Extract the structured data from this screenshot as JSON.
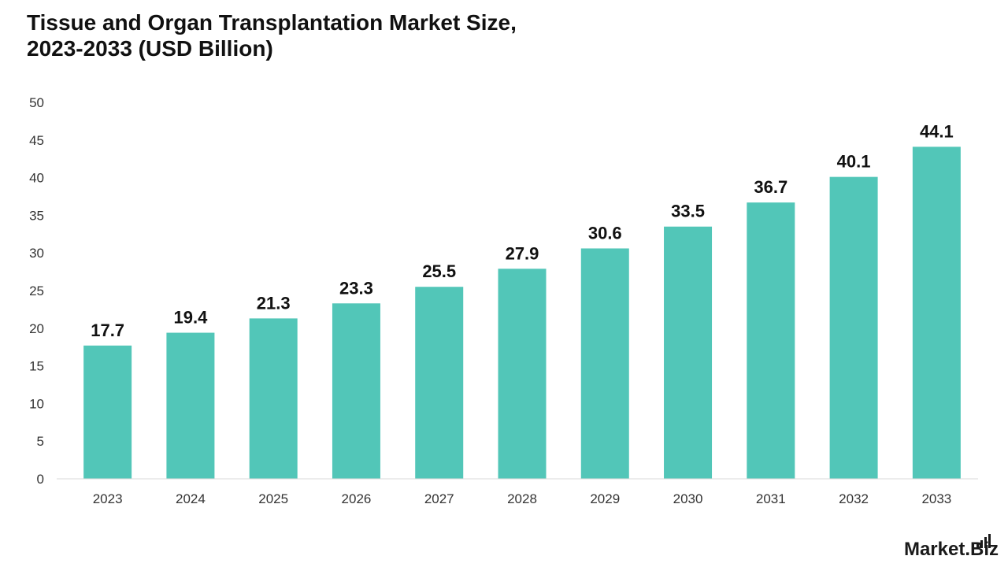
{
  "header": {
    "title": "Tissue and Organ Transplantation Market Size,\n2023-2033 (USD Billion)"
  },
  "brand": {
    "logo_text": "Market.Biz"
  },
  "chart_data": {
    "type": "bar",
    "title": "Tissue and Organ Transplantation Market Size, 2023-2033 (USD Billion)",
    "xlabel": "",
    "ylabel": "",
    "categories": [
      "2023",
      "2024",
      "2025",
      "2026",
      "2027",
      "2028",
      "2029",
      "2030",
      "2031",
      "2032",
      "2033"
    ],
    "values": [
      17.7,
      19.4,
      21.3,
      23.3,
      25.5,
      27.9,
      30.6,
      33.5,
      36.7,
      40.1,
      44.1
    ],
    "value_labels": [
      "17.7",
      "19.4",
      "21.3",
      "23.3",
      "25.5",
      "27.9",
      "30.6",
      "33.5",
      "36.7",
      "40.1",
      "44.1"
    ],
    "yticks": [
      0,
      5,
      10,
      15,
      20,
      25,
      30,
      35,
      40,
      45,
      50
    ],
    "ylim": [
      0,
      50
    ],
    "grid": false,
    "legend": "none",
    "bar_color": "#52c6b8"
  }
}
